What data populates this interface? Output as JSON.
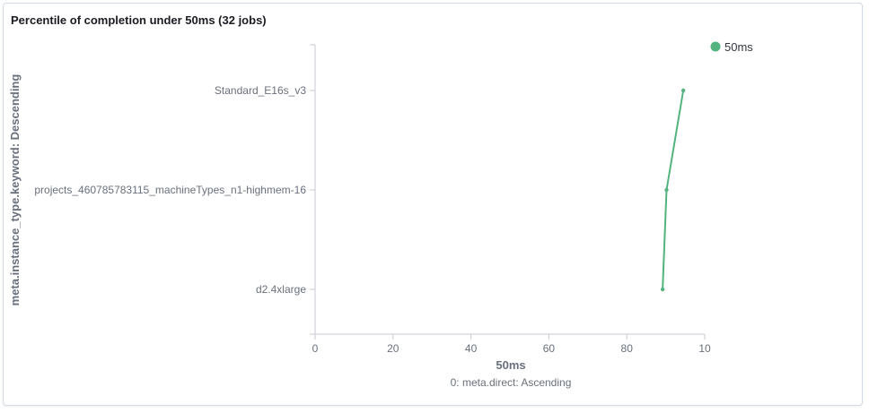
{
  "panel": {
    "title": "Percentile of completion under 50ms (32 jobs)"
  },
  "chart_data": {
    "type": "line",
    "orientation": "horizontal",
    "title": "Percentile of completion under 50ms (32 jobs)",
    "categories": [
      "Standard_E16s_v3",
      "projects_460785783115_machineTypes_n1-highmem-16",
      "d2.4xlarge"
    ],
    "series": [
      {
        "name": "50ms",
        "color": "#54b37e",
        "values": [
          94.5,
          90.2,
          89.2
        ]
      }
    ],
    "xlabel": "50ms",
    "xlabel_secondary": "0: meta.direct: Ascending",
    "ylabel": "meta.instance_type.keyword: Descending",
    "xlim": [
      0,
      100
    ],
    "xticks": [
      "0",
      "20",
      "40",
      "60",
      "80",
      "10"
    ],
    "legend": "top-right",
    "grid": false
  }
}
